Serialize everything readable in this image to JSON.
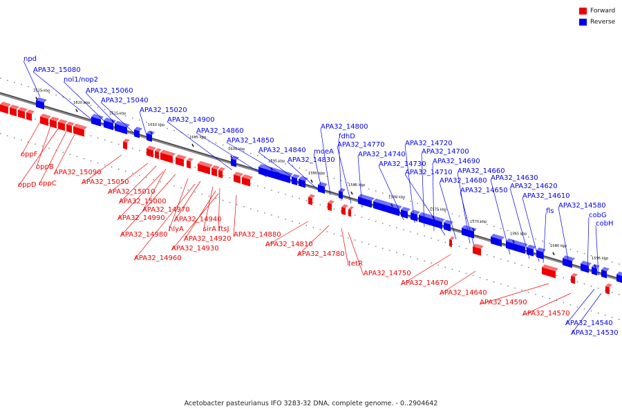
{
  "legend": {
    "forward_label": "Forward",
    "reverse_label": "Reverse",
    "forward_color": "#ee0000",
    "reverse_color": "#0000ee"
  },
  "caption": "Acetobacter pasteurianus IFO 3283-32 DNA, complete genome. - 0..2904642",
  "scale_ticks": [
    "1625 kbp",
    "1620 kbp",
    "1615 kbp",
    "1610 kbp",
    "1605 kbp",
    "1600 kbp",
    "1595 kbp",
    "1590 kbp",
    "1585 kbp",
    "1580 kbp",
    "1575 kbp",
    "1570 kbp",
    "1565 kbp",
    "1560 kbp",
    "1555 kbp"
  ],
  "reverse_genes": [
    "npd",
    "APA32_15080",
    "nol1/nop2",
    "APA32_15060",
    "APA32_15040",
    "APA32_15020",
    "APA32_14900",
    "APA32_14860",
    "APA32_14850",
    "APA32_14840",
    "APA32_14830",
    "moeA",
    "APA32_14800",
    "fdhD",
    "APA32_14770",
    "APA32_14740",
    "APA32_14730",
    "APA32_14720",
    "APA32_14700",
    "APA32_14690",
    "APA32_14710",
    "APA32_14680",
    "APA32_14660",
    "APA32_14650",
    "APA32_14630",
    "APA32_14620",
    "APA32_14610",
    "fls",
    "APA32_14580",
    "cobG",
    "cobH",
    "APA32_14540",
    "APA32_14530"
  ],
  "forward_genes": [
    "oppF",
    "oppB",
    "oppD",
    "oppC",
    "APA32_15090",
    "APA32_15050",
    "APA32_15010",
    "APA32_15000",
    "APA32_14970",
    "APA32_14990",
    "APA32_14980",
    "hlyA",
    "APA32_14940",
    "APA32_14960",
    "sirA",
    "ftsJ",
    "APA32_14920",
    "APA32_14930",
    "APA32_14880",
    "APA32_14810",
    "APA32_14780",
    "tetR",
    "APA32_14750",
    "APA32_14670",
    "APA32_14640",
    "APA32_14590",
    "APA32_14570"
  ]
}
